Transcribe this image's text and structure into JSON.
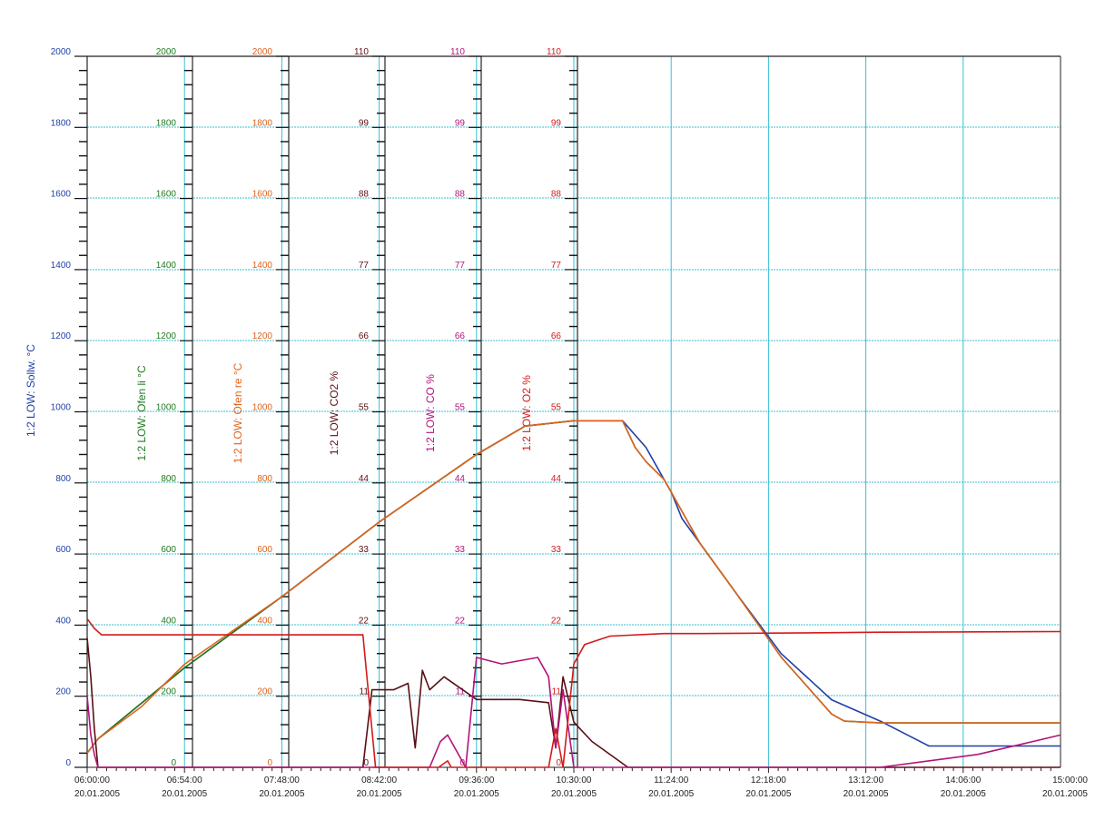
{
  "chart_data": {
    "type": "line",
    "x_start_min": 360,
    "x_end_min": 900,
    "x_tick_labels": [
      {
        "time": "06:00:00",
        "date": "20.01.2005"
      },
      {
        "time": "06:54:00",
        "date": "20.01.2005"
      },
      {
        "time": "07:48:00",
        "date": "20.01.2005"
      },
      {
        "time": "08:42:00",
        "date": "20.01.2005"
      },
      {
        "time": "09:36:00",
        "date": "20.01.2005"
      },
      {
        "time": "10:30:00",
        "date": "20.01.2005"
      },
      {
        "time": "11:24:00",
        "date": "20.01.2005"
      },
      {
        "time": "12:18:00",
        "date": "20.01.2005"
      },
      {
        "time": "13:12:00",
        "date": "20.01.2005"
      },
      {
        "time": "14:06:00",
        "date": "20.01.2005"
      },
      {
        "time": "15:00:00",
        "date": "20.01.2005"
      }
    ],
    "grid": true,
    "axes": [
      {
        "title": "1:2 LOW: Sollw. °C",
        "color": "#1f3fa8",
        "ylim": [
          0,
          2000
        ],
        "ticks": [
          "2000",
          "1800",
          "1600",
          "1400",
          "1200",
          "1000",
          "800",
          "600",
          "400",
          "200",
          "0"
        ]
      },
      {
        "title": "1:2 LOW: Ofen li °C",
        "color": "#1f7a1f",
        "ylim": [
          0,
          2000
        ],
        "ticks": [
          "2000",
          "1800",
          "1600",
          "1400",
          "1200",
          "1000",
          "800",
          "600",
          "400",
          "200",
          "0"
        ]
      },
      {
        "title": "1:2 LOW: Ofen re °C",
        "color": "#e0631c",
        "ylim": [
          0,
          2000
        ],
        "ticks": [
          "2000",
          "1800",
          "1600",
          "1400",
          "1200",
          "1000",
          "800",
          "600",
          "400",
          "200",
          "0"
        ]
      },
      {
        "title": "1:2 LOW: CO2 %",
        "color": "#5a0f14",
        "ylim": [
          0,
          110
        ],
        "ticks": [
          "110",
          "99",
          "88",
          "77",
          "66",
          "55",
          "44",
          "33",
          "22",
          "11",
          "0"
        ]
      },
      {
        "title": "1:2 LOW: CO %",
        "color": "#b3137a",
        "ylim": [
          0,
          110
        ],
        "ticks": [
          "110",
          "99",
          "88",
          "77",
          "66",
          "55",
          "44",
          "33",
          "22",
          "11",
          "0"
        ]
      },
      {
        "title": "1:2 LOW: O2   %",
        "color": "#d41a1a",
        "ylim": [
          0,
          110
        ],
        "ticks": [
          "110",
          "99",
          "88",
          "77",
          "66",
          "55",
          "44",
          "33",
          "22",
          "11",
          "0"
        ]
      }
    ],
    "series": [
      {
        "name": "1:2 LOW: Sollw. °C",
        "axis": 0,
        "color": "#1f3fa8",
        "x": [
          360,
          366,
          414,
          468,
          522,
          576,
          603,
          630,
          657,
          670,
          680,
          684,
          690,
          720,
          745,
          773,
          800,
          827,
          854,
          880,
          900
        ],
        "y": [
          40,
          80,
          280,
          480,
          690,
          880,
          960,
          975,
          975,
          900,
          810,
          775,
          700,
          490,
          320,
          190,
          130,
          60,
          60,
          60,
          60
        ]
      },
      {
        "name": "1:2 LOW: Ofen li °C",
        "axis": 1,
        "color": "#1f7a1f",
        "x": [
          360,
          366,
          414,
          468,
          522,
          576,
          603,
          630,
          657,
          664,
          670,
          680,
          700,
          720,
          745,
          773,
          780,
          800,
          827,
          854,
          880,
          900
        ],
        "y": [
          40,
          80,
          280,
          480,
          690,
          880,
          960,
          975,
          975,
          900,
          860,
          810,
          630,
          490,
          310,
          150,
          130,
          125,
          125,
          125,
          125,
          125
        ]
      },
      {
        "name": "1:2 LOW: Ofen re °C",
        "axis": 2,
        "color": "#e0631c",
        "x": [
          360,
          366,
          390,
          414,
          468,
          522,
          576,
          603,
          630,
          657,
          664,
          670,
          680,
          700,
          720,
          745,
          773,
          780,
          800,
          827,
          854,
          880,
          900
        ],
        "y": [
          40,
          80,
          170,
          290,
          480,
          690,
          880,
          960,
          975,
          975,
          900,
          860,
          810,
          630,
          490,
          310,
          150,
          130,
          125,
          125,
          125,
          125,
          125
        ]
      },
      {
        "name": "1:2 LOW: CO2 %",
        "axis": 3,
        "color": "#5a0f14",
        "x": [
          360,
          362,
          364,
          366,
          513,
          518,
          530,
          538,
          542,
          546,
          550,
          558,
          576,
          600,
          616,
          620,
          624,
          630,
          640,
          660,
          680,
          900
        ],
        "y": [
          20,
          14,
          6,
          0,
          0,
          12,
          12,
          13,
          3,
          15,
          12,
          14,
          10.5,
          10.5,
          10,
          3,
          14,
          7,
          4,
          0,
          0,
          0
        ]
      },
      {
        "name": "1:2 LOW: CO %",
        "axis": 4,
        "color": "#b3137a",
        "x": [
          360,
          362,
          364,
          366,
          513,
          550,
          556,
          560,
          570,
          576,
          590,
          610,
          616,
          620,
          624,
          630,
          640,
          660,
          680,
          750,
          760,
          800,
          854,
          900
        ],
        "y": [
          11,
          5,
          2,
          0,
          0,
          0,
          4,
          5,
          0,
          17,
          16,
          17,
          14,
          3,
          12,
          0,
          0,
          0,
          0,
          0,
          0,
          0,
          2,
          5
        ]
      },
      {
        "name": "1:2 LOW: O2   %",
        "axis": 5,
        "color": "#d41a1a",
        "x": [
          360,
          364,
          368,
          380,
          470,
          510,
          513,
          520,
          530,
          540,
          555,
          560,
          562,
          576,
          600,
          616,
          620,
          624,
          630,
          636,
          650,
          680,
          700,
          760,
          800,
          900
        ],
        "y": [
          23,
          21.5,
          20.5,
          20.5,
          20.5,
          20.5,
          20.5,
          0,
          0,
          0,
          0,
          1,
          0,
          0,
          0,
          0,
          6,
          0,
          16,
          19,
          20.3,
          20.7,
          20.7,
          20.8,
          20.9,
          21
        ]
      }
    ]
  }
}
